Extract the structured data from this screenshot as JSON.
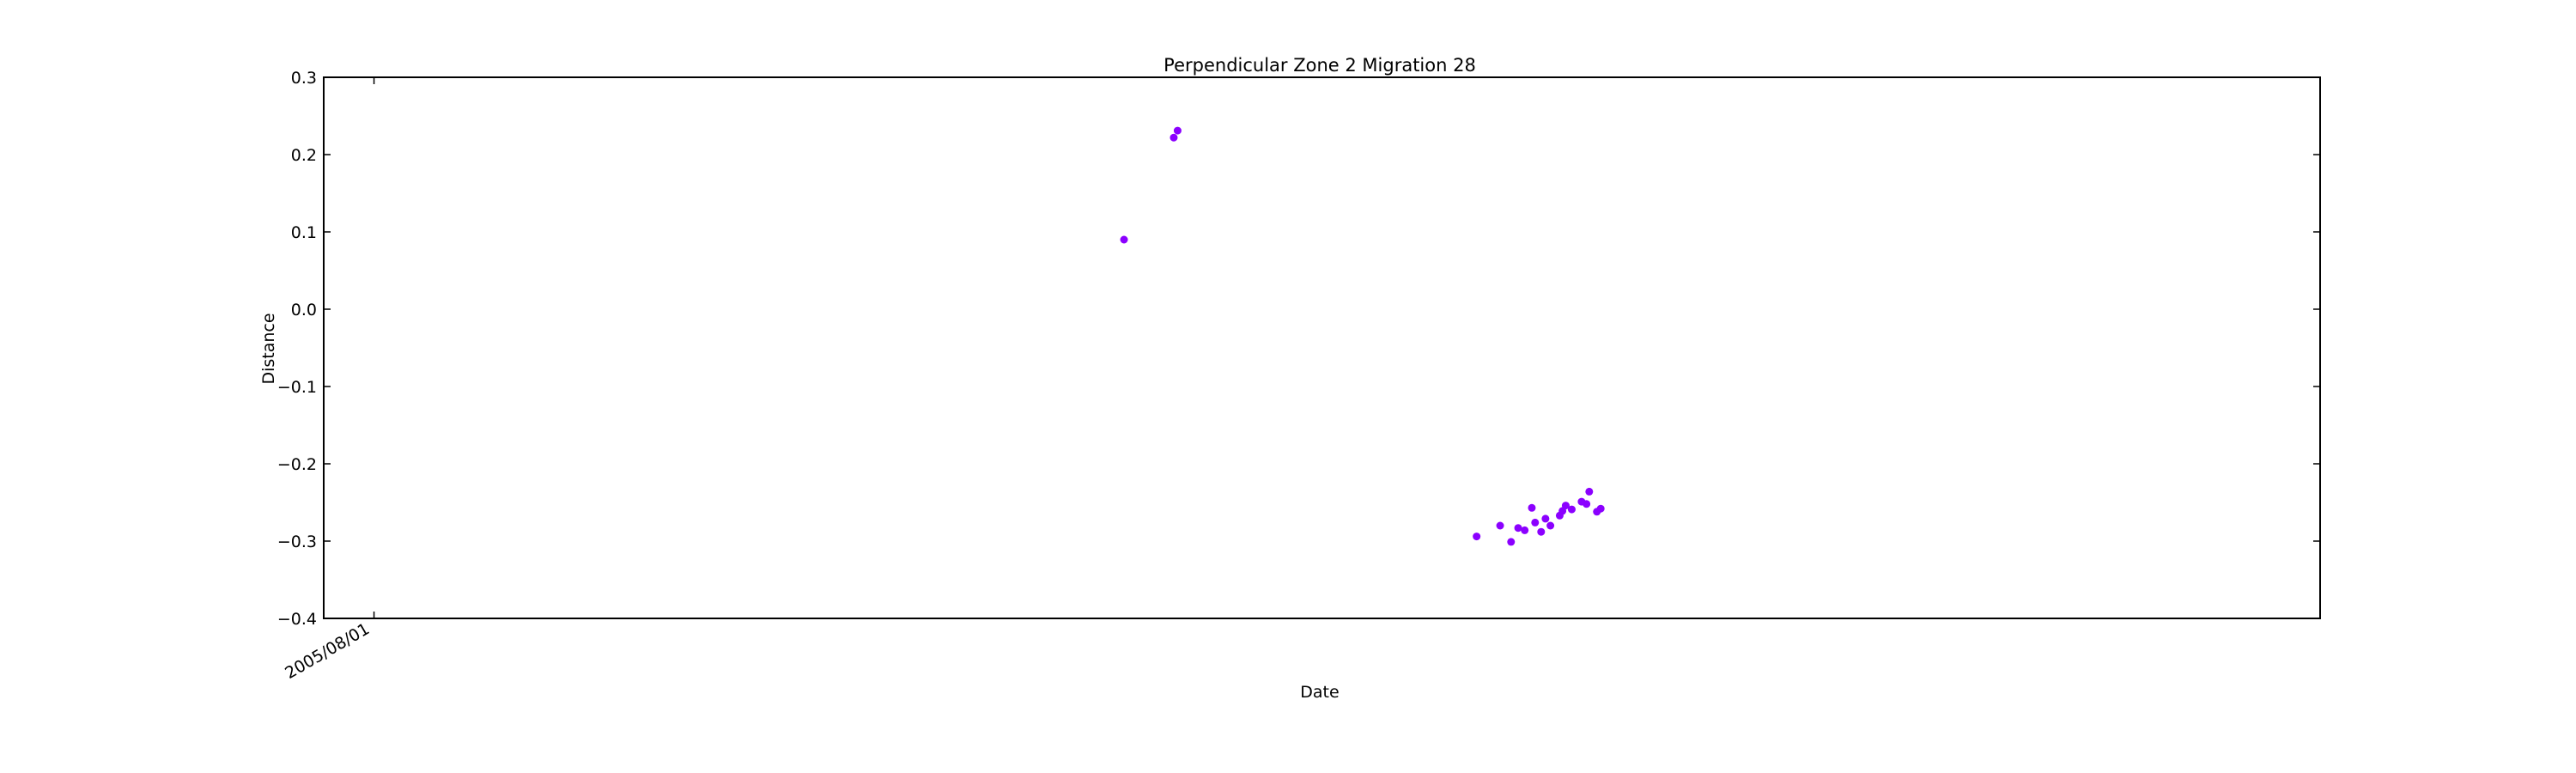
{
  "chart_data": {
    "type": "scatter",
    "title": "Perpendicular Zone 2 Migration 28",
    "xlabel": "Date",
    "ylabel": "Distance",
    "ylim": [
      -0.4,
      0.3
    ],
    "yticks": [
      -0.4,
      -0.3,
      -0.2,
      -0.1,
      0.0,
      0.1,
      0.2,
      0.3
    ],
    "ytick_labels": [
      "−0.4",
      "−0.3",
      "−0.2",
      "−0.1",
      "0.0",
      "0.1",
      "0.2",
      "0.3"
    ],
    "xlim": [
      "2005-05-01",
      "2015-05-01"
    ],
    "xticks": [
      "2005-08-01"
    ],
    "xtick_labels": [
      "2005/08/01"
    ],
    "grid": false,
    "marker_color": "#8B00FF",
    "points": [
      {
        "x": "2009-05-04",
        "y": 0.09
      },
      {
        "x": "2009-08-03",
        "y": 0.222
      },
      {
        "x": "2009-08-10",
        "y": 0.231
      },
      {
        "x": "2011-02-08",
        "y": -0.294
      },
      {
        "x": "2011-03-23",
        "y": -0.28
      },
      {
        "x": "2011-04-12",
        "y": -0.301
      },
      {
        "x": "2011-04-25",
        "y": -0.283
      },
      {
        "x": "2011-05-07",
        "y": -0.286
      },
      {
        "x": "2011-05-20",
        "y": -0.257
      },
      {
        "x": "2011-05-26",
        "y": -0.276
      },
      {
        "x": "2011-06-06",
        "y": -0.288
      },
      {
        "x": "2011-06-14",
        "y": -0.271
      },
      {
        "x": "2011-06-23",
        "y": -0.28
      },
      {
        "x": "2011-07-10",
        "y": -0.267
      },
      {
        "x": "2011-07-15",
        "y": -0.261
      },
      {
        "x": "2011-07-21",
        "y": -0.254
      },
      {
        "x": "2011-08-01",
        "y": -0.259
      },
      {
        "x": "2011-08-19",
        "y": -0.249
      },
      {
        "x": "2011-08-28",
        "y": -0.252
      },
      {
        "x": "2011-09-02",
        "y": -0.236
      },
      {
        "x": "2011-09-16",
        "y": -0.262
      },
      {
        "x": "2011-09-23",
        "y": -0.258
      }
    ]
  }
}
